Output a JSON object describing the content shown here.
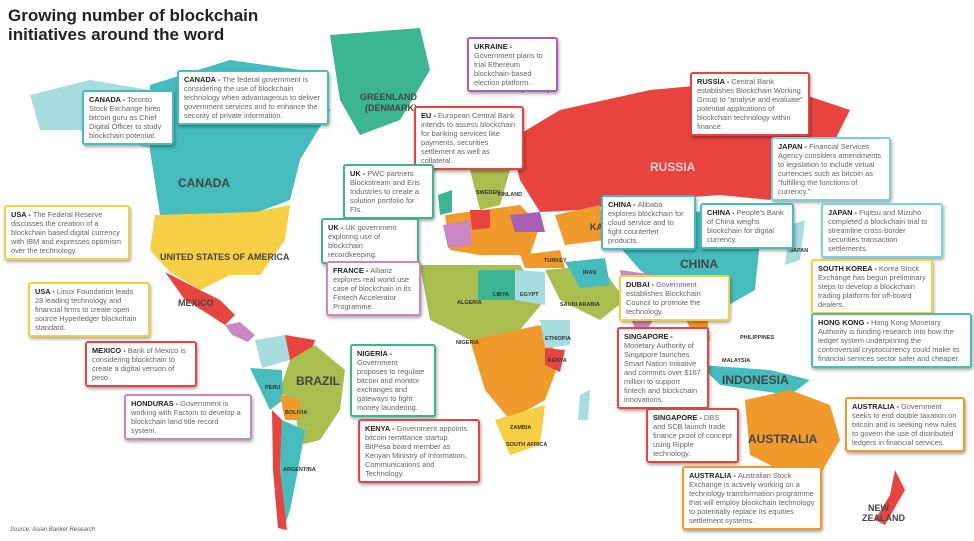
{
  "title": "Growing number of blockchain initiatives around the word",
  "source": "Source: Asian Banker Research",
  "colors": {
    "teal": "#45bcbd",
    "yellow": "#f7cf45",
    "red": "#e8443f",
    "pink": "#cc86c4",
    "purple": "#a85fb6",
    "green": "#3bb592",
    "lightblue": "#7ccfdc",
    "orange": "#f09a2b",
    "olive": "#a9be4f"
  },
  "country_labels": [
    {
      "text": "CANADA"
    },
    {
      "text": "GREENLAND"
    },
    {
      "text": "(DENMARK)"
    },
    {
      "text": "UNITED STATES OF AMERICA"
    },
    {
      "text": "MEXICO"
    },
    {
      "text": "BRAZIL"
    },
    {
      "text": "RUSSIA"
    },
    {
      "text": "CHINA"
    },
    {
      "text": "INDONESIA"
    },
    {
      "text": "AUSTRALIA"
    },
    {
      "text": "NEW"
    },
    {
      "text": "ZEALAND"
    },
    {
      "text": "ALGERIA"
    },
    {
      "text": "LIBYA"
    },
    {
      "text": "EGYPT"
    },
    {
      "text": "TURKEY"
    },
    {
      "text": "IRAN"
    },
    {
      "text": "SAUDI ARABIA"
    },
    {
      "text": "ETHIOPIA"
    },
    {
      "text": "ZAMBIA"
    },
    {
      "text": "SOUTH AFRICA"
    },
    {
      "text": "ARGENTINA"
    },
    {
      "text": "PERU"
    },
    {
      "text": "BOLIVIA"
    },
    {
      "text": "SWEDEN"
    },
    {
      "text": "FINLAND"
    },
    {
      "text": "SVALBARD (NORWAY)"
    },
    {
      "text": "PHILIPPINES"
    },
    {
      "text": "MALAYSIA"
    },
    {
      "text": "JAPAN"
    },
    {
      "text": "KENYA"
    },
    {
      "text": "NIGERIA"
    },
    {
      "text": "KAZ"
    }
  ],
  "callouts": [
    {
      "country": "CANADA -",
      "text": "Toronto Stock Exchange hires bitcoin guru as Chief Digital Officer to study blockchain potential.",
      "color": "teal"
    },
    {
      "country": "CANADA -",
      "text": "The federal government is considering the use of blockchain technology when advantageous to deliver government services and to enhance the security of private information.",
      "color": "teal"
    },
    {
      "country": "USA -",
      "text": "The Federal Reserve discusses the creation of a blockchain based digital currency with IBM and expresses optimism over the technology.",
      "color": "yellow"
    },
    {
      "country": "USA -",
      "text": "Linux Foundation leads 28 leading technology and financial firms to create open source Hyperledger blockchain standard.",
      "color": "yellow"
    },
    {
      "country": "MEXICO -",
      "text": "Bank of Mexico is considering blockchain to create a digital version of peso.",
      "color": "red"
    },
    {
      "country": "HONDURAS -",
      "text": "Government is working with Factom to develop a blockchain land title record system.",
      "color": "pink"
    },
    {
      "country": "UKRAINE -",
      "text": "Government plans to trial Ethereum blockchain-based election platform.",
      "color": "purple"
    },
    {
      "country": "EU -",
      "text": "European Central Bank intends to assess blockchain for banking services like payments, securities settlement as well as collateral.",
      "color": "red"
    },
    {
      "country": "UK -",
      "text": "PWC partners Blockstream and Eris Industries to create a solution portfolio for FIs.",
      "color": "green"
    },
    {
      "country": "UK -",
      "text": "UK government exploring use of blockchain recordkeeping.",
      "color": "green"
    },
    {
      "country": "FRANCE -",
      "text": "Allianz explores real world use case of blockchain in its Fintech Accelerator Programme.",
      "color": "pink"
    },
    {
      "country": "NIGERIA -",
      "text": "Government proposes to regulate bitcoin and monitor exchanges and gateways to fight money laundering.",
      "color": "green"
    },
    {
      "country": "KENYA -",
      "text": "Government appoints bitcoin remittance startup BitPesa board member as Kenyan Ministry of Information, Communications and Technology.",
      "color": "red"
    },
    {
      "country": "DUBAI -",
      "text": "Government establishes Blockchain Council to promote the technology.",
      "color": "yellow"
    },
    {
      "country": "SINGAPORE -",
      "text": "Monetary Authority of Singapore launches Smart Nation Initiative and commits over $167 million to support fintech and blockchain innovations.",
      "color": "red"
    },
    {
      "country": "SINGAPORE -",
      "text": "DBS and SCB launch trade finance proof of concept using Ripple technology.",
      "color": "red"
    },
    {
      "country": "RUSSIA -",
      "text": "Central Bank establishes Blockchain Working Group to “analyse and evaluate” potential applications of blockchain technology within finance.",
      "color": "red"
    },
    {
      "country": "JAPAN -",
      "text": "Financial Services Agency considers amendments to legislation to include virtual currencies such as bitcoin as “fulfilling the functions of currency.”",
      "color": "lightblue"
    },
    {
      "country": "JAPAN -",
      "text": "Fujitsu and Mizuho completed a blockchain trial to streamline cross-border securities transaction settlements.",
      "color": "lightblue"
    },
    {
      "country": "CHINA -",
      "text": "Alibaba explores blockchain for cloud service and to fight counterfeit products.",
      "color": "teal"
    },
    {
      "country": "CHINA -",
      "text": "People's Bank of China weighs blockchain for digital currency.",
      "color": "teal"
    },
    {
      "country": "SOUTH KOREA -",
      "text": "Korea Stock Exchange has begun preliminary steps to develop a blockchain trading platform for off-board dealers.",
      "color": "yellow"
    },
    {
      "country": "HONG KONG -",
      "text": "Hong Kong Monetary Authority is funding research into how the ledger system underpinning the controversial cryptocurrency could make its financial services sector safer and cheaper.",
      "color": "teal"
    },
    {
      "country": "AUSTRALIA -",
      "text": "Government seeks to end double taxation on bitcoin and is seeking new rules to govern the use of distributed ledgers in financial services.",
      "color": "orange"
    },
    {
      "country": "AUSTRALIA -",
      "text": "Australian Stock Exchange is actively working on a technology transformation programme that will employ blockchain technology to potentially replace its equities settlement systems.",
      "color": "orange"
    }
  ]
}
